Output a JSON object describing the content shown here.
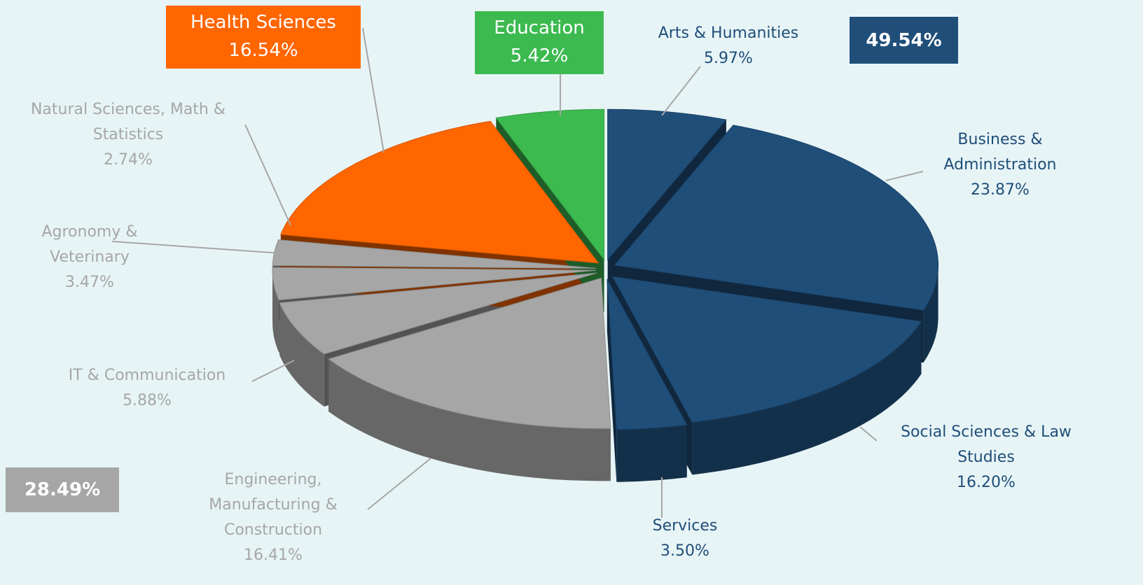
{
  "chart_data": {
    "type": "pie",
    "categories": [
      "Arts & Humanities",
      "Business & Administration",
      "Social Sciences & Law Studies",
      "Services",
      "Engineering, Manufacturing & Construction",
      "IT & Communication",
      "Agronomy & Veterinary",
      "Natural Sciences, Math & Statistics",
      "Health Sciences",
      "Education"
    ],
    "values": [
      5.97,
      23.87,
      16.2,
      3.5,
      16.41,
      5.88,
      3.47,
      2.74,
      16.54,
      5.42
    ],
    "value_labels": [
      "5.97%",
      "23.87%",
      "16.20%",
      "3.50%",
      "16.41%",
      "5.88%",
      "3.47%",
      "2.74%",
      "16.54%",
      "5.42%"
    ],
    "colors": [
      "#1f4e79",
      "#1f4e79",
      "#1f4e79",
      "#1f4e79",
      "#a6a6a6",
      "#a6a6a6",
      "#a6a6a6",
      "#a6a6a6",
      "#ff6600",
      "#3cba50"
    ],
    "annotations": [
      {
        "text": "49.54%",
        "color": "#1f4e79"
      },
      {
        "text": "28.49%",
        "color": "#a6a6a6"
      }
    ]
  }
}
